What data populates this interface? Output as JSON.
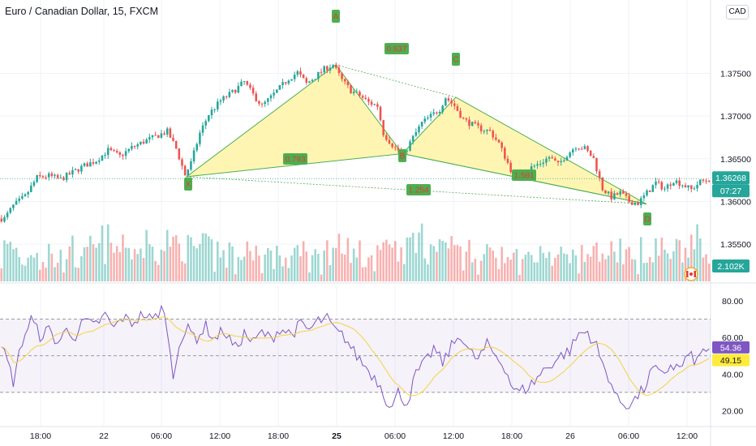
{
  "header": {
    "title": "Euro / Canadian Dollar, 15, FXCM",
    "currency_button": "CAD"
  },
  "colors": {
    "up": "#26a69a",
    "down": "#ef5350",
    "pattern_fill": "#fff3a6",
    "pattern_stroke": "#4caf50",
    "rsi_line": "#7e57c2",
    "rsi_ma": "#f5d33f",
    "label_bg": "#4caf50",
    "label_text": "#e53935",
    "price_tag": "#26a69a",
    "rsi_tag": "#7e57c2",
    "rsi_ma_tag": "#ffeb3b"
  },
  "chart_data": {
    "type": "candlestick",
    "symbol": "EURCAD",
    "timeframe": "15",
    "price_axis": {
      "ticks": [
        "1.37500",
        "1.37000",
        "1.36500",
        "1.36000",
        "1.35500"
      ],
      "range": [
        1.3515,
        1.3815
      ]
    },
    "last_price": "1.36268",
    "countdown": "07:27",
    "volume_last": "2.102K",
    "rsi_axis": {
      "ticks": [
        "80.00",
        "60.00",
        "40.00",
        "20.00"
      ],
      "range": [
        14,
        84
      ],
      "bands": [
        70,
        50,
        30
      ]
    },
    "rsi_value": "54.36",
    "rsi_ma_value": "49.15",
    "time_ticks": [
      "18:00",
      "22",
      "06:00",
      "12:00",
      "18:00",
      "25",
      "06:00",
      "12:00",
      "18:00",
      "26",
      "06:00",
      "12:00"
    ],
    "pattern_points": [
      {
        "label": "X",
        "price": 1.3629
      },
      {
        "label": "A",
        "price": 1.376
      },
      {
        "label": "B",
        "price": 1.3656
      },
      {
        "label": "C",
        "price": 1.3722
      },
      {
        "label": "D",
        "price": 1.3597
      }
    ],
    "ratio_labels": [
      "0.793",
      "0.637",
      "1.581",
      "1.254"
    ],
    "close_path": [
      [
        1,
        1.358
      ],
      [
        4,
        1.3595
      ],
      [
        8,
        1.3606
      ],
      [
        12,
        1.3628
      ],
      [
        16,
        1.363
      ],
      [
        20,
        1.3626
      ],
      [
        24,
        1.3634
      ],
      [
        28,
        1.3642
      ],
      [
        32,
        1.3648
      ],
      [
        36,
        1.366
      ],
      [
        40,
        1.3653
      ],
      [
        44,
        1.3663
      ],
      [
        48,
        1.367
      ],
      [
        52,
        1.3676
      ],
      [
        56,
        1.3682
      ],
      [
        59,
        1.3662
      ],
      [
        62,
        1.3631
      ],
      [
        64,
        1.3645
      ],
      [
        67,
        1.368
      ],
      [
        70,
        1.3702
      ],
      [
        74,
        1.3718
      ],
      [
        78,
        1.3728
      ],
      [
        82,
        1.374
      ],
      [
        85,
        1.3725
      ],
      [
        88,
        1.3712
      ],
      [
        91,
        1.3722
      ],
      [
        94,
        1.3733
      ],
      [
        97,
        1.3744
      ],
      [
        100,
        1.3751
      ],
      [
        103,
        1.3738
      ],
      [
        106,
        1.3746
      ],
      [
        109,
        1.3755
      ],
      [
        112,
        1.376
      ],
      [
        115,
        1.3742
      ],
      [
        118,
        1.373
      ],
      [
        121,
        1.3724
      ],
      [
        124,
        1.3716
      ],
      [
        127,
        1.3712
      ],
      [
        129,
        1.368
      ],
      [
        130,
        1.3675
      ],
      [
        133,
        1.3662
      ],
      [
        136,
        1.3656
      ],
      [
        139,
        1.3675
      ],
      [
        142,
        1.3692
      ],
      [
        145,
        1.37
      ],
      [
        148,
        1.3708
      ],
      [
        150,
        1.3722
      ],
      [
        153,
        1.3712
      ],
      [
        156,
        1.3696
      ],
      [
        159,
        1.369
      ],
      [
        162,
        1.3685
      ],
      [
        165,
        1.3682
      ],
      [
        168,
        1.3668
      ],
      [
        171,
        1.3645
      ],
      [
        173,
        1.363
      ],
      [
        176,
        1.3632
      ],
      [
        179,
        1.364
      ],
      [
        182,
        1.3645
      ],
      [
        185,
        1.3652
      ],
      [
        188,
        1.3643
      ],
      [
        191,
        1.3655
      ],
      [
        194,
        1.3665
      ],
      [
        197,
        1.3662
      ],
      [
        200,
        1.365
      ],
      [
        203,
        1.3615
      ],
      [
        206,
        1.3605
      ],
      [
        209,
        1.361
      ],
      [
        212,
        1.36
      ],
      [
        215,
        1.3598
      ],
      [
        218,
        1.361
      ],
      [
        221,
        1.3622
      ],
      [
        224,
        1.3615
      ],
      [
        227,
        1.3625
      ],
      [
        230,
        1.362
      ],
      [
        233,
        1.3614
      ],
      [
        236,
        1.3623
      ],
      [
        239,
        1.3626
      ]
    ],
    "rsi_path": [
      [
        1,
        52
      ],
      [
        4,
        36
      ],
      [
        7,
        58
      ],
      [
        10,
        70
      ],
      [
        13,
        61
      ],
      [
        16,
        64
      ],
      [
        19,
        57
      ],
      [
        22,
        64
      ],
      [
        25,
        61
      ],
      [
        28,
        69
      ],
      [
        31,
        66
      ],
      [
        35,
        72
      ],
      [
        38,
        65
      ],
      [
        41,
        71
      ],
      [
        44,
        68
      ],
      [
        48,
        73
      ],
      [
        51,
        69
      ],
      [
        54,
        76
      ],
      [
        56,
        66
      ],
      [
        57,
        50
      ],
      [
        58,
        38
      ],
      [
        60,
        58
      ],
      [
        63,
        64
      ],
      [
        66,
        60
      ],
      [
        69,
        66
      ],
      [
        72,
        59
      ],
      [
        75,
        64
      ],
      [
        79,
        54
      ],
      [
        82,
        62
      ],
      [
        85,
        57
      ],
      [
        88,
        63
      ],
      [
        91,
        59
      ],
      [
        94,
        65
      ],
      [
        98,
        62
      ],
      [
        101,
        67
      ],
      [
        104,
        64
      ],
      [
        107,
        69
      ],
      [
        110,
        70
      ],
      [
        113,
        63
      ],
      [
        116,
        60
      ],
      [
        119,
        52
      ],
      [
        122,
        46
      ],
      [
        125,
        40
      ],
      [
        128,
        34
      ],
      [
        130,
        26
      ],
      [
        132,
        22
      ],
      [
        134,
        30
      ],
      [
        137,
        24
      ],
      [
        140,
        40
      ],
      [
        143,
        46
      ],
      [
        146,
        54
      ],
      [
        149,
        46
      ],
      [
        152,
        55
      ],
      [
        155,
        62
      ],
      [
        158,
        52
      ],
      [
        161,
        48
      ],
      [
        164,
        56
      ],
      [
        167,
        50
      ],
      [
        170,
        44
      ],
      [
        172,
        35
      ],
      [
        174,
        30
      ],
      [
        177,
        32
      ],
      [
        180,
        36
      ],
      [
        183,
        42
      ],
      [
        186,
        46
      ],
      [
        189,
        50
      ],
      [
        192,
        53
      ],
      [
        195,
        62
      ],
      [
        198,
        63
      ],
      [
        201,
        55
      ],
      [
        203,
        45
      ],
      [
        205,
        39
      ],
      [
        208,
        26
      ],
      [
        211,
        23
      ],
      [
        214,
        26
      ],
      [
        217,
        32
      ],
      [
        220,
        43
      ],
      [
        223,
        39
      ],
      [
        226,
        45
      ],
      [
        229,
        43
      ],
      [
        232,
        50
      ],
      [
        235,
        47
      ],
      [
        237,
        53
      ],
      [
        239,
        54.36
      ]
    ]
  }
}
